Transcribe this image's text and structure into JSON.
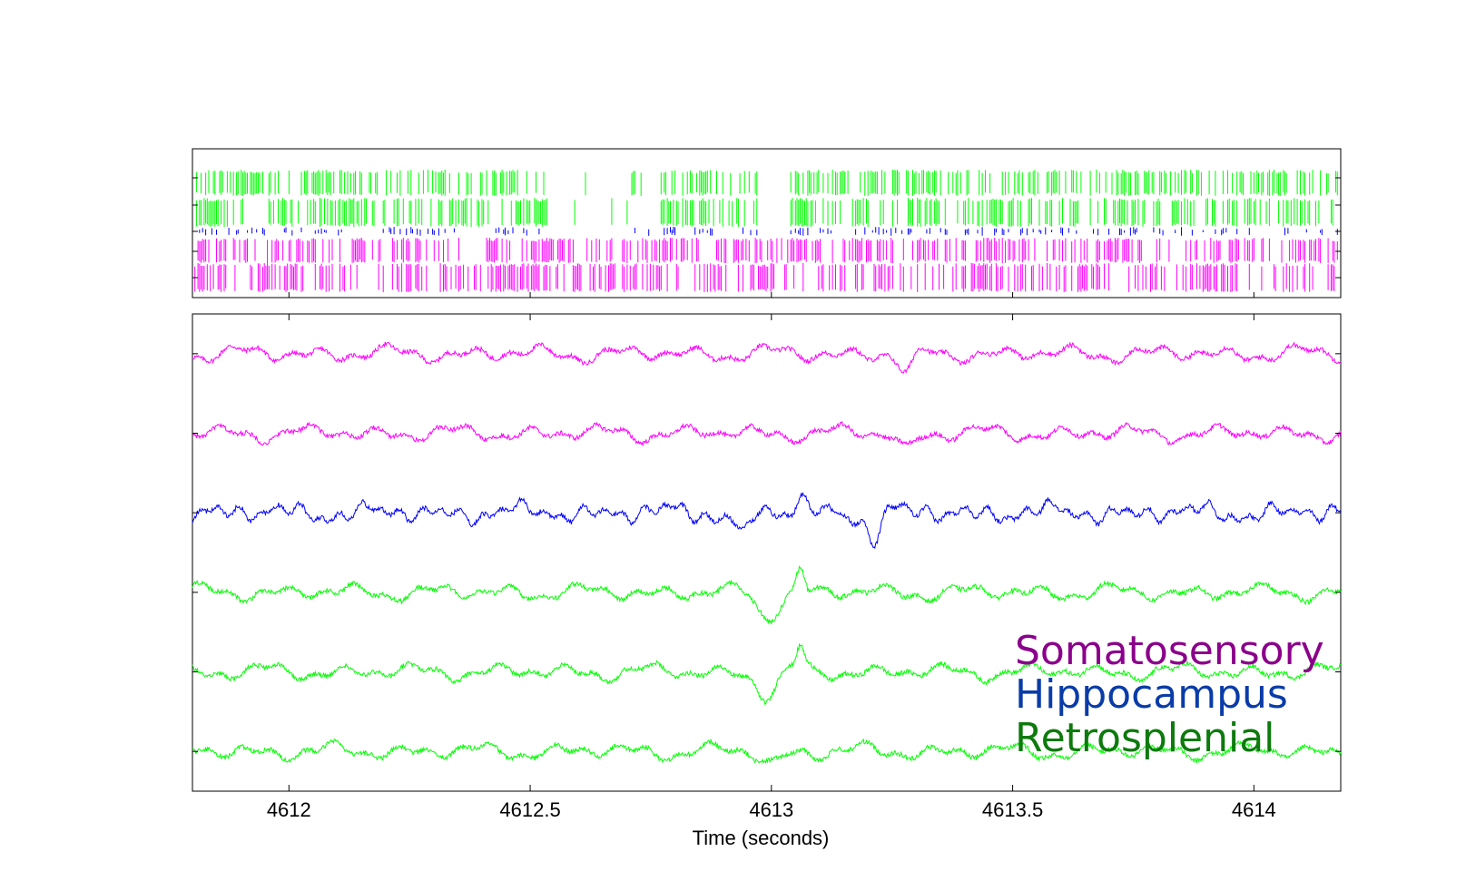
{
  "chart_data": [
    {
      "type": "raster",
      "panel": "spike-raster",
      "xlim": [
        4611.8,
        4614.18
      ],
      "rows": [
        {
          "region": "Retrosplenial",
          "color": "#00ff00",
          "count": 2,
          "spike_rate": 0.55
        },
        {
          "region": "Hippocampus",
          "color": "#0000ff",
          "count": 1,
          "spike_rate": 0.35
        },
        {
          "region": "Somatosensory",
          "color": "#ff00ff",
          "count": 2,
          "spike_rate": 0.5
        }
      ],
      "quiet_periods": [
        [
          4612.54,
          4612.7
        ],
        [
          4612.72,
          4612.77
        ],
        [
          4612.98,
          4613.04
        ]
      ]
    },
    {
      "type": "line",
      "panel": "lfp-traces",
      "xlim": [
        4611.8,
        4614.18
      ],
      "xticks": [
        4612,
        4612.5,
        4613,
        4613.5,
        4614
      ],
      "xtick_labels": [
        "4612",
        "4612.5",
        "4613",
        "4613.5",
        "4614"
      ],
      "xlabel": "Time (seconds)",
      "ylim": [
        0,
        6
      ],
      "series": [
        {
          "region": "Somatosensory",
          "color": "#ff00ff",
          "offset": 5.5,
          "events": [
            [
              4613.28,
              -0.25,
              0.015
            ]
          ]
        },
        {
          "region": "Somatosensory",
          "color": "#ff00ff",
          "offset": 4.5,
          "events": [
            [
              4613.28,
              -0.2,
              0.015
            ]
          ]
        },
        {
          "region": "Hippocampus",
          "color": "#0000ff",
          "offset": 3.5,
          "events": [
            [
              4612.94,
              -0.3,
              0.012
            ],
            [
              4613.06,
              0.15,
              0.01
            ],
            [
              4613.21,
              -0.35,
              0.012
            ]
          ]
        },
        {
          "region": "Retrosplenial",
          "color": "#00ff00",
          "offset": 2.5,
          "events": [
            [
              4612.99,
              -0.3,
              0.02
            ],
            [
              4613.06,
              0.3,
              0.008
            ]
          ]
        },
        {
          "region": "Retrosplenial",
          "color": "#00ff00",
          "offset": 1.5,
          "events": [
            [
              4612.99,
              -0.3,
              0.02
            ],
            [
              4613.06,
              0.28,
              0.008
            ]
          ]
        },
        {
          "region": "Retrosplenial",
          "color": "#00ff00",
          "offset": 0.5,
          "events": [
            [
              4613.0,
              -0.15,
              0.02
            ]
          ]
        }
      ]
    }
  ],
  "legend": {
    "entries": [
      {
        "label": "Somatosensory",
        "color": "#8b008b"
      },
      {
        "label": "Hippocampus",
        "color": "#0a3ca8"
      },
      {
        "label": "Retrosplenial",
        "color": "#0d7a0d"
      }
    ]
  }
}
